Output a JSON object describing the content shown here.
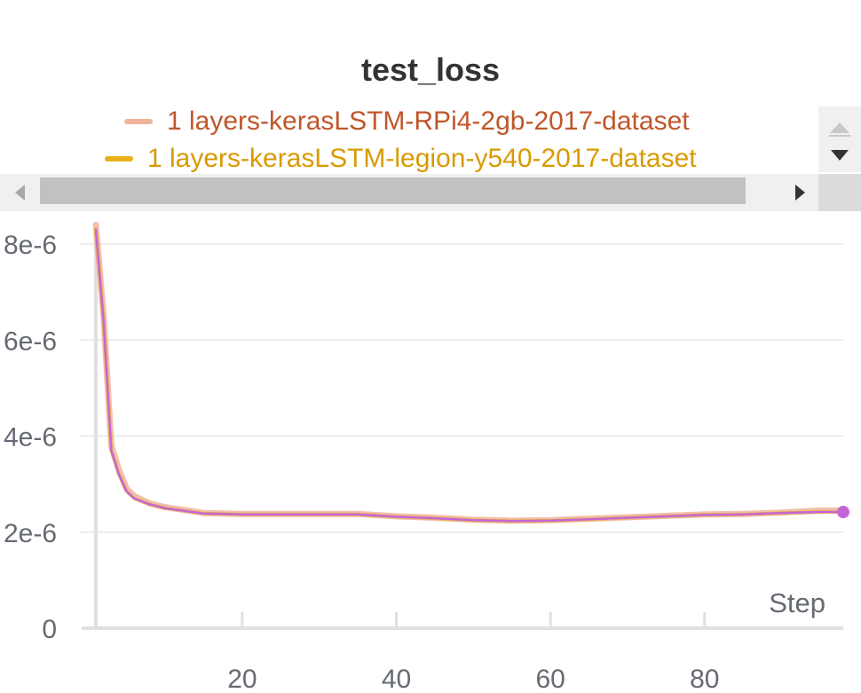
{
  "chart_data": {
    "type": "line",
    "title": "test_loss",
    "xlabel": "Step",
    "ylabel": "",
    "xlim": [
      1,
      98
    ],
    "ylim": [
      0,
      8.5e-06
    ],
    "x_ticks": [
      20,
      40,
      60,
      80
    ],
    "x_tick_labels": [
      "20",
      "40",
      "60",
      "80"
    ],
    "y_ticks": [
      0,
      2e-06,
      4e-06,
      6e-06,
      8e-06
    ],
    "y_tick_labels": [
      "0",
      "2e-6",
      "4e-6",
      "6e-6",
      "8e-6"
    ],
    "grid": "horizontal",
    "legend_position": "top",
    "series": [
      {
        "name": "1 layers-kerasLSTM-RPi4-2gb-2017-dataset",
        "color": "#f0b49a",
        "x": [
          1,
          2,
          3,
          4,
          5,
          6,
          8,
          10,
          15,
          20,
          25,
          30,
          35,
          40,
          45,
          50,
          55,
          60,
          65,
          70,
          75,
          80,
          85,
          90,
          95,
          98
        ],
        "values": [
          8.4e-06,
          6.5e-06,
          3.8e-06,
          3.3e-06,
          2.9e-06,
          2.75e-06,
          2.6e-06,
          2.52e-06,
          2.4e-06,
          2.38e-06,
          2.38e-06,
          2.38e-06,
          2.38e-06,
          2.33e-06,
          2.3e-06,
          2.26e-06,
          2.24e-06,
          2.25e-06,
          2.28e-06,
          2.31e-06,
          2.34e-06,
          2.37e-06,
          2.38e-06,
          2.41e-06,
          2.45e-06,
          2.45e-06
        ]
      },
      {
        "name": "1 layers-kerasLSTM-legion-y540-2017-dataset",
        "color": "#e8b019",
        "x": [
          1,
          2,
          3,
          4,
          5,
          6,
          8,
          10,
          15,
          20,
          25,
          30,
          35,
          40,
          45,
          50,
          55,
          60,
          65,
          70,
          75,
          80,
          85,
          90,
          95,
          98
        ],
        "values": [
          8.3e-06,
          6.4e-06,
          3.7e-06,
          3.2e-06,
          2.85e-06,
          2.7e-06,
          2.58e-06,
          2.5e-06,
          2.39e-06,
          2.37e-06,
          2.37e-06,
          2.37e-06,
          2.37e-06,
          2.32e-06,
          2.29e-06,
          2.25e-06,
          2.23e-06,
          2.24e-06,
          2.27e-06,
          2.3e-06,
          2.33e-06,
          2.36e-06,
          2.37e-06,
          2.4e-06,
          2.42e-06,
          2.42e-06
        ]
      },
      {
        "name": "",
        "color": "#c466d6",
        "x": [
          1,
          2,
          3,
          4,
          5,
          6,
          8,
          10,
          15,
          20,
          25,
          30,
          35,
          40,
          45,
          50,
          55,
          60,
          65,
          70,
          75,
          80,
          85,
          90,
          95,
          98
        ],
        "values": [
          8.3e-06,
          6.4e-06,
          3.7e-06,
          3.2e-06,
          2.85e-06,
          2.7e-06,
          2.58e-06,
          2.5e-06,
          2.39e-06,
          2.37e-06,
          2.37e-06,
          2.37e-06,
          2.37e-06,
          2.32e-06,
          2.29e-06,
          2.25e-06,
          2.23e-06,
          2.24e-06,
          2.27e-06,
          2.3e-06,
          2.33e-06,
          2.36e-06,
          2.37e-06,
          2.4e-06,
          2.42e-06,
          2.42e-06
        ]
      }
    ]
  },
  "legend": {
    "items": [
      {
        "label": "1 layers-kerasLSTM-RPi4-2gb-2017-dataset",
        "color": "#f0b49a",
        "text_color": "#c0562a"
      },
      {
        "label": "1 layers-kerasLSTM-legion-y540-2017-dataset",
        "color": "#e8b019",
        "text_color": "#d89a00"
      }
    ]
  },
  "icons": {
    "scroll_up": "triangle-up-icon",
    "scroll_down": "triangle-down-icon",
    "scroll_left": "triangle-left-icon",
    "scroll_right": "triangle-right-icon"
  }
}
